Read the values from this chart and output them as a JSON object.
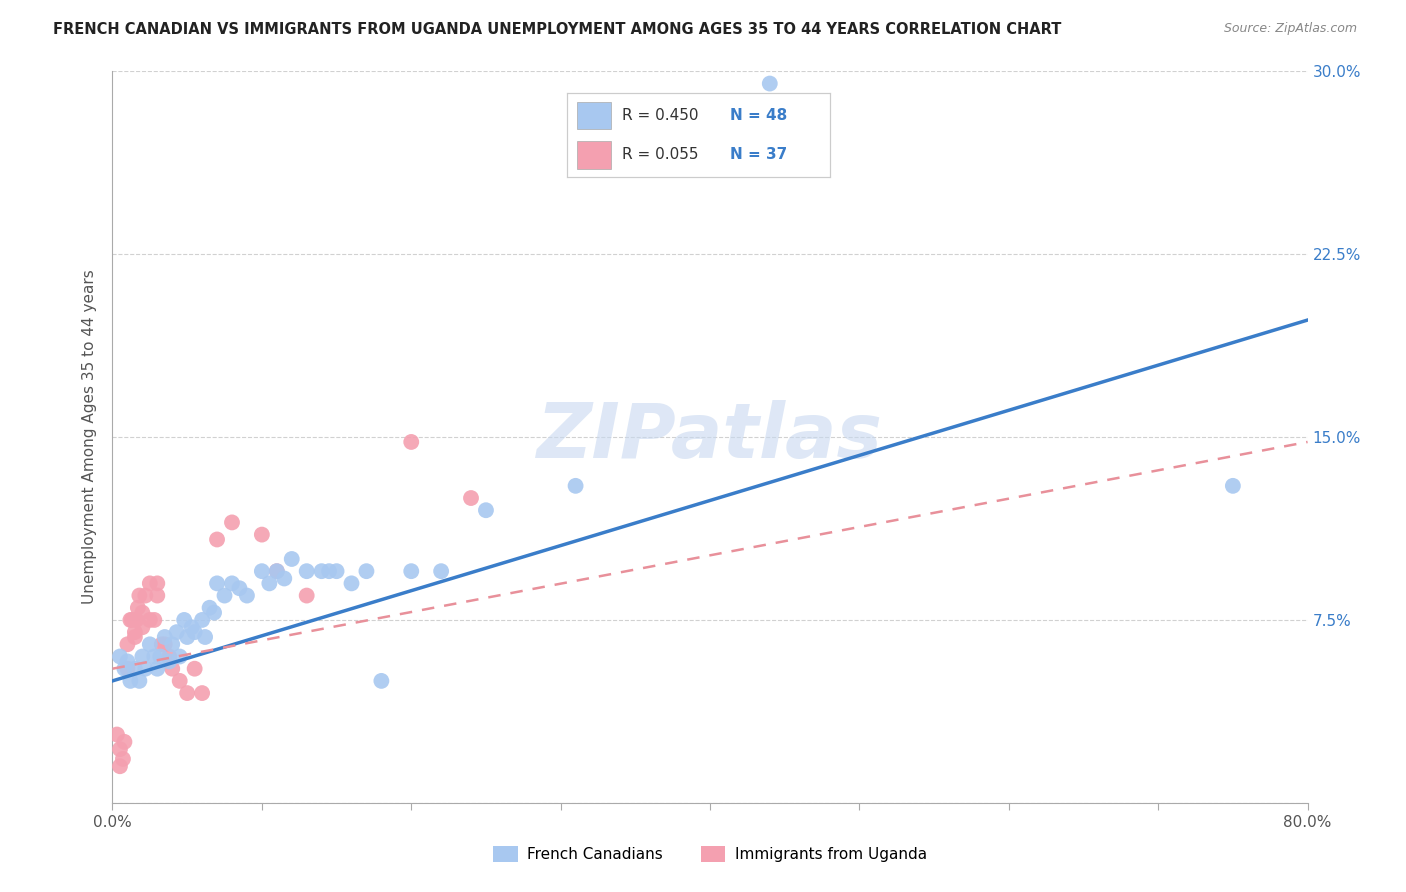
{
  "title": "FRENCH CANADIAN VS IMMIGRANTS FROM UGANDA UNEMPLOYMENT AMONG AGES 35 TO 44 YEARS CORRELATION CHART",
  "source": "Source: ZipAtlas.com",
  "ylabel": "Unemployment Among Ages 35 to 44 years",
  "xlim": [
    0,
    0.8
  ],
  "ylim": [
    0,
    0.3
  ],
  "xticks": [
    0.0,
    0.1,
    0.2,
    0.3,
    0.4,
    0.5,
    0.6,
    0.7,
    0.8
  ],
  "xticklabels": [
    "0.0%",
    "",
    "",
    "",
    "",
    "",
    "",
    "",
    "80.0%"
  ],
  "yticks": [
    0.0,
    0.075,
    0.15,
    0.225,
    0.3
  ],
  "yticklabels": [
    "",
    "7.5%",
    "15.0%",
    "22.5%",
    "30.0%"
  ],
  "legend_r_blue": "R = 0.450",
  "legend_n_blue": "N = 48",
  "legend_r_pink": "R = 0.055",
  "legend_n_pink": "N = 37",
  "legend_label_blue": "French Canadians",
  "legend_label_pink": "Immigrants from Uganda",
  "blue_color": "#A8C8F0",
  "pink_color": "#F4A0B0",
  "blue_line_color": "#3A7DC9",
  "pink_line_color": "#E8909A",
  "watermark_color": "#C8D8F0",
  "watermark": "ZIPatlas",
  "blue_scatter_x": [
    0.005,
    0.008,
    0.01,
    0.012,
    0.015,
    0.018,
    0.02,
    0.022,
    0.025,
    0.028,
    0.03,
    0.032,
    0.035,
    0.038,
    0.04,
    0.043,
    0.045,
    0.048,
    0.05,
    0.053,
    0.055,
    0.06,
    0.062,
    0.065,
    0.068,
    0.07,
    0.075,
    0.08,
    0.085,
    0.09,
    0.1,
    0.105,
    0.11,
    0.115,
    0.12,
    0.13,
    0.14,
    0.145,
    0.15,
    0.16,
    0.17,
    0.18,
    0.2,
    0.22,
    0.25,
    0.31,
    0.44,
    0.75
  ],
  "blue_scatter_y": [
    0.06,
    0.055,
    0.058,
    0.05,
    0.055,
    0.05,
    0.06,
    0.055,
    0.065,
    0.06,
    0.055,
    0.06,
    0.068,
    0.058,
    0.065,
    0.07,
    0.06,
    0.075,
    0.068,
    0.072,
    0.07,
    0.075,
    0.068,
    0.08,
    0.078,
    0.09,
    0.085,
    0.09,
    0.088,
    0.085,
    0.095,
    0.09,
    0.095,
    0.092,
    0.1,
    0.095,
    0.095,
    0.095,
    0.095,
    0.09,
    0.095,
    0.05,
    0.095,
    0.095,
    0.12,
    0.13,
    0.295,
    0.13
  ],
  "pink_scatter_x": [
    0.003,
    0.005,
    0.005,
    0.007,
    0.008,
    0.01,
    0.01,
    0.012,
    0.013,
    0.015,
    0.015,
    0.016,
    0.017,
    0.018,
    0.02,
    0.02,
    0.022,
    0.025,
    0.025,
    0.028,
    0.03,
    0.03,
    0.033,
    0.035,
    0.038,
    0.04,
    0.045,
    0.05,
    0.055,
    0.06,
    0.07,
    0.08,
    0.1,
    0.11,
    0.13,
    0.2,
    0.24
  ],
  "pink_scatter_y": [
    0.028,
    0.022,
    0.015,
    0.018,
    0.025,
    0.055,
    0.065,
    0.075,
    0.075,
    0.07,
    0.068,
    0.075,
    0.08,
    0.085,
    0.072,
    0.078,
    0.085,
    0.09,
    0.075,
    0.075,
    0.09,
    0.085,
    0.065,
    0.065,
    0.06,
    0.055,
    0.05,
    0.045,
    0.055,
    0.045,
    0.108,
    0.115,
    0.11,
    0.095,
    0.085,
    0.148,
    0.125
  ],
  "blue_trend_x": [
    0.0,
    0.8
  ],
  "blue_trend_y": [
    0.05,
    0.198
  ],
  "pink_trend_x": [
    0.0,
    0.8
  ],
  "pink_trend_y": [
    0.055,
    0.148
  ]
}
